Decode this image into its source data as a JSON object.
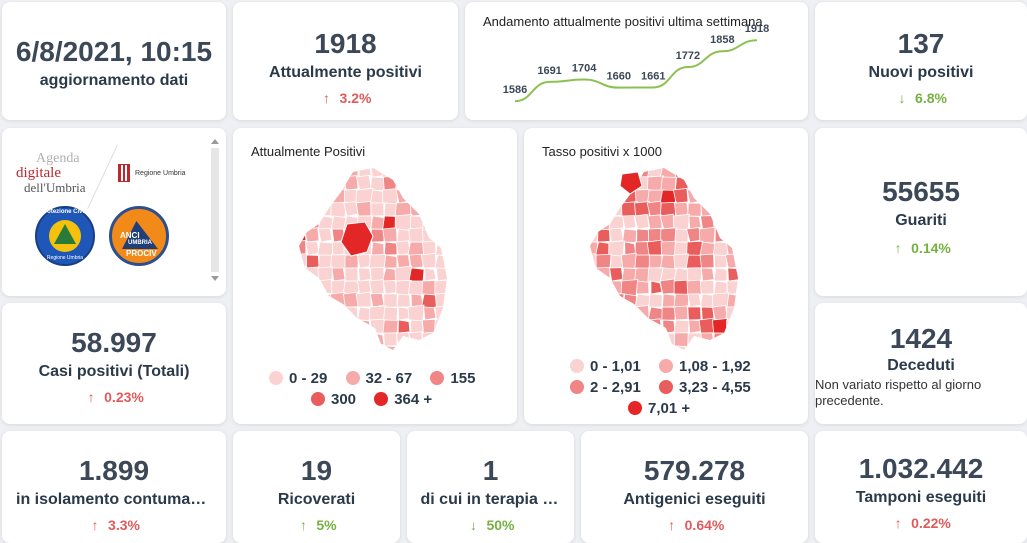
{
  "update": {
    "datetime": "6/8/2021, 10:15",
    "label": "aggiornamento dati"
  },
  "attualmente_positivi": {
    "value": "1918",
    "label": "Attualmente positivi",
    "trend": "3.2%",
    "dir": "up"
  },
  "weekly_chart": {
    "title": "Andamento attualmente positivi ultima settimana",
    "chart_data": {
      "type": "line",
      "title": "Andamento attualmente positivi ultima settimana",
      "values": [
        1586,
        1691,
        1704,
        1660,
        1661,
        1772,
        1858,
        1918
      ],
      "value_labels": [
        "1586",
        "1691",
        "1704",
        "1660",
        "1661",
        "1772",
        "1858",
        "1918"
      ],
      "line_color": "#8cc152"
    }
  },
  "nuovi_positivi": {
    "value": "137",
    "label": "Nuovi positivi",
    "trend": "6.8%",
    "dir": "down"
  },
  "logos": {
    "agenda_line1": "Agenda",
    "agenda_line2": "digitale",
    "agenda_line3": "dell'Umbria",
    "regione": "Regione Umbria",
    "protezione": "Protezione Civile",
    "protezione_sub": "Regione Umbria",
    "anci1": "ANCI",
    "anci2": "UMBRIA",
    "anci3": "PROCIV"
  },
  "map_attualmente": {
    "title": "Attualmente Positivi",
    "legend": [
      {
        "label": "0 - 29",
        "color": "#fbd2d2"
      },
      {
        "label": "32 - 67",
        "color": "#f6aaaa"
      },
      {
        "label": "155",
        "color": "#f08585"
      },
      {
        "label": "300",
        "color": "#ea5d5d"
      },
      {
        "label": "364 +",
        "color": "#e32626"
      }
    ]
  },
  "map_tasso": {
    "title": "Tasso positivi x 1000",
    "legend": [
      {
        "label": "0 - 1,01",
        "color": "#fbd2d2"
      },
      {
        "label": "1,08 - 1,92",
        "color": "#f6aaaa"
      },
      {
        "label": "2 - 2,91",
        "color": "#f08585"
      },
      {
        "label": "3,23 - 4,55",
        "color": "#ea5d5d"
      },
      {
        "label": "7,01 +",
        "color": "#e32626"
      }
    ]
  },
  "guariti": {
    "value": "55655",
    "label": "Guariti",
    "trend": "0.14%",
    "dir": "up"
  },
  "casi_totali": {
    "value": "58.997",
    "label": "Casi positivi (Totali)",
    "trend": "0.23%",
    "dir": "up"
  },
  "deceduti": {
    "value": "1424",
    "label": "Deceduti",
    "note": "Non variato rispetto al giorno precedente."
  },
  "isolamento": {
    "value": "1.899",
    "label": "in isolamento contumaciale",
    "trend": "3.3%",
    "dir": "up"
  },
  "ricoverati": {
    "value": "19",
    "label": "Ricoverati",
    "trend": "5%",
    "dir": "down"
  },
  "terapia": {
    "value": "1",
    "label": "di cui in terapia intensiva",
    "trend": "50%",
    "dir": "down"
  },
  "antigenici": {
    "value": "579.278",
    "label": "Antigenici eseguiti",
    "trend": "0.64%",
    "dir": "up"
  },
  "tamponi": {
    "value": "1.032.442",
    "label": "Tamponi eseguiti",
    "trend": "0.22%",
    "dir": "up"
  },
  "colors": {
    "up": "#e05a5a",
    "down": "#76b041",
    "accent_line": "#8cc152"
  }
}
